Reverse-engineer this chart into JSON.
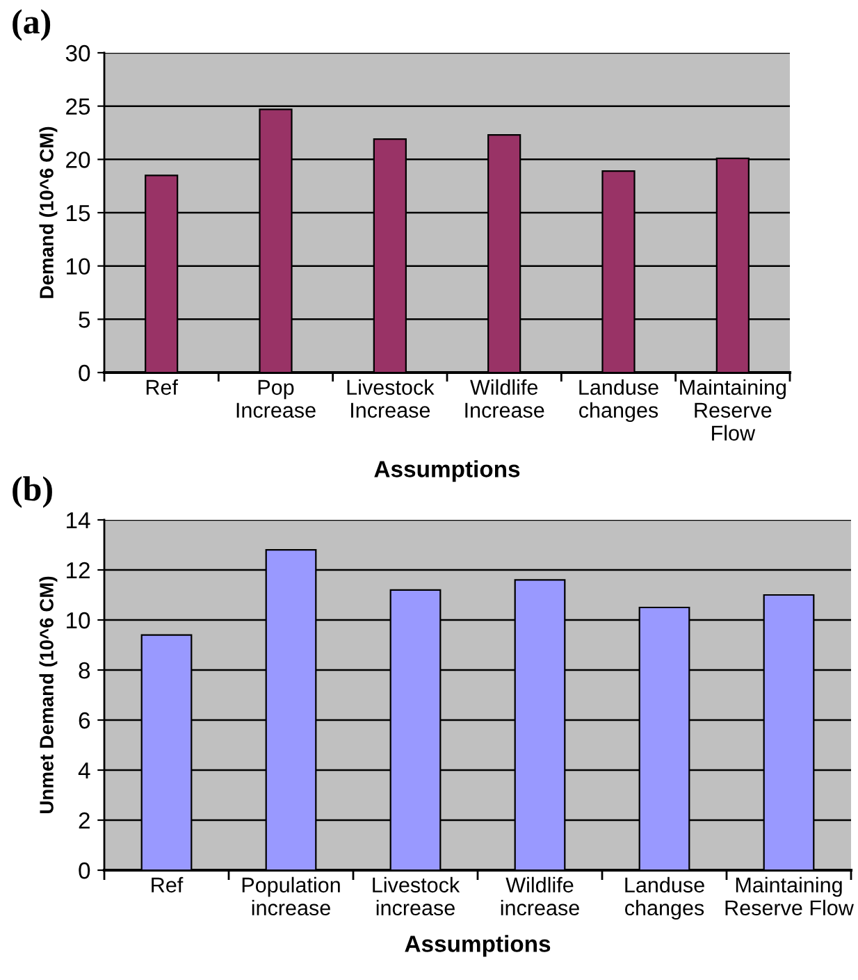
{
  "chart_data": [
    {
      "type": "bar",
      "title": "(a)",
      "xlabel": "Assumptions",
      "ylabel": "Demand (10^6 CM)",
      "categories": [
        "Ref",
        "Pop\nIncrease",
        "Livestock\nIncrease",
        "Wildlife\nIncrease",
        "Landuse\nchanges",
        "Maintaining\nReserve\nFlow"
      ],
      "values": [
        18.5,
        24.7,
        21.9,
        22.3,
        18.9,
        20.1
      ],
      "color": "#993366",
      "ylim": [
        0,
        30
      ],
      "yticks": [
        0,
        5,
        10,
        15,
        20,
        25,
        30
      ],
      "grid": "y",
      "legend": false
    },
    {
      "type": "bar",
      "title": "(b)",
      "xlabel": "Assumptions",
      "ylabel": "Unmet Demand (10^6 CM)",
      "categories": [
        "Ref",
        "Population\nincrease",
        "Livestock\nincrease",
        "Wildlife\nincrease",
        "Landuse\nchanges",
        "Maintaining\nReserve Flow"
      ],
      "values": [
        9.4,
        12.8,
        11.2,
        11.6,
        10.5,
        11.0
      ],
      "color": "#9999ff",
      "ylim": [
        0,
        14
      ],
      "yticks": [
        0,
        2,
        4,
        6,
        8,
        10,
        12,
        14
      ],
      "grid": "y",
      "legend": false
    }
  ]
}
